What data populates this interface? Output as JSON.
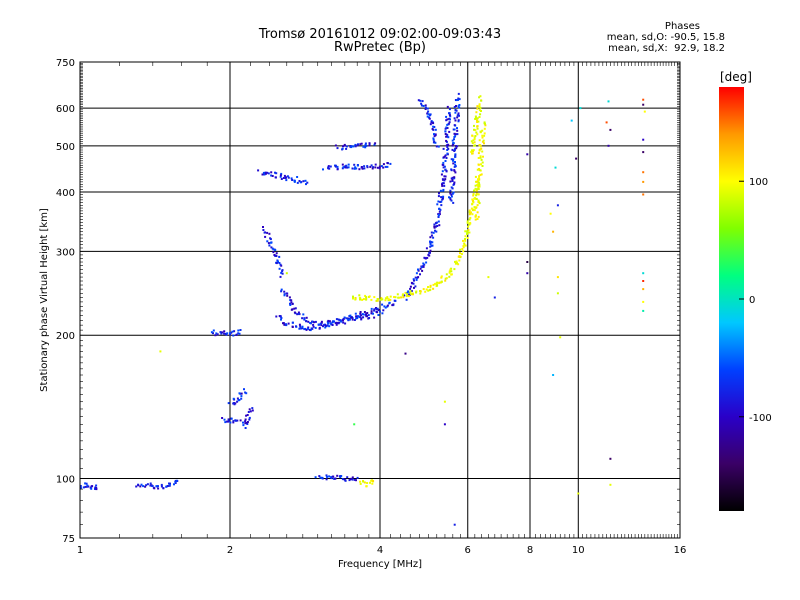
{
  "header": {
    "title_line1": "Tromsø 20161012 09:02:00-09:03:43",
    "title_line2": "RwPretec (Bp)",
    "phases_title": "Phases",
    "phases_o": "mean, sd,O: -90.5, 15.8",
    "phases_x": "mean, sd,X:  92.9, 18.2"
  },
  "colorbar": {
    "unit_label": "[deg]",
    "tick_labels": [
      "100",
      "0",
      "-100"
    ],
    "tick_values": [
      100,
      0,
      -100
    ],
    "range": [
      -180,
      180
    ],
    "colors": [
      "#000000",
      "#3a0066",
      "#2a00c8",
      "#0040ff",
      "#00c8ff",
      "#00ff80",
      "#80ff00",
      "#ffff00",
      "#ff9900",
      "#ff0000"
    ]
  },
  "chart_data": {
    "type": "scatter",
    "title": "Tromsø 20161012 09:02:00-09:03:43",
    "subtitle": "RwPretec (Bp)",
    "xlabel": "Frequency [MHz]",
    "ylabel": "Stationary phase Virtual Height [km]",
    "xscale": "log",
    "yscale": "log",
    "xlim": [
      1,
      16
    ],
    "ylim": [
      75,
      750
    ],
    "xticks": [
      1,
      2,
      4,
      6,
      8,
      10,
      16
    ],
    "xtick_labels": [
      "1",
      "2",
      "4",
      "6",
      "8",
      "10",
      "16"
    ],
    "yticks": [
      75,
      100,
      200,
      300,
      400,
      500,
      600,
      750
    ],
    "ytick_labels": [
      "75",
      "100",
      "200",
      "300",
      "400",
      "500",
      "600",
      "750"
    ],
    "grid": true,
    "color_variable": "phase [deg]",
    "series": [
      {
        "mode": "O",
        "phase": -110,
        "segments": [
          {
            "x": [
              1.0,
              1.03,
              1.06,
              1.08
            ],
            "y": [
              96,
              97,
              95,
              96
            ]
          },
          {
            "x": [
              1.3,
              1.38,
              1.45,
              1.52,
              1.58
            ],
            "y": [
              96,
              97,
              96,
              97,
              98
            ]
          },
          {
            "x": [
              1.84,
              1.9,
              1.97,
              2.04,
              2.1
            ],
            "y": [
              203,
              202,
              201,
              202,
              203
            ]
          },
          {
            "x": [
              1.93,
              2.0,
              2.05,
              2.1
            ],
            "y": [
              133,
              132,
              133,
              132
            ]
          },
          {
            "x": [
              2.0,
              2.05,
              2.1,
              2.14
            ],
            "y": [
              143,
              145,
              149,
              153
            ]
          },
          {
            "x": [
              2.15,
              2.17,
              2.2
            ],
            "y": [
              128,
              132,
              140
            ]
          },
          {
            "x": [
              3.0,
              3.2,
              3.45,
              3.6
            ],
            "y": [
              100,
              101,
              100,
              99
            ]
          },
          {
            "x": [
              2.3,
              2.4,
              2.55,
              2.7,
              2.85
            ],
            "y": [
              440,
              437,
              430,
              425,
              418
            ]
          },
          {
            "x": [
              3.1,
              3.4,
              3.7,
              4.2
            ],
            "y": [
              448,
              452,
              450,
              455
            ]
          },
          {
            "x": [
              3.3,
              3.6,
              3.9
            ],
            "y": [
              495,
              500,
              505
            ]
          },
          {
            "x": [
              2.35,
              2.4,
              2.45,
              2.5,
              2.55
            ],
            "y": [
              335,
              315,
              300,
              285,
              268
            ]
          },
          {
            "x": [
              2.55,
              2.7,
              2.9,
              3.2,
              3.5,
              3.9,
              4.3
            ],
            "y": [
              250,
              225,
              213,
              212,
              218,
              225,
              235
            ]
          },
          {
            "x": [
              2.5,
              2.6,
              2.75,
              2.9,
              3.1,
              3.4,
              3.7,
              4.0
            ],
            "y": [
              220,
              212,
              208,
              207,
              210,
              214,
              218,
              222
            ]
          },
          {
            "x": [
              4.5,
              4.8,
              5.0,
              5.2,
              5.3,
              5.4,
              5.45,
              5.5
            ],
            "y": [
              240,
              270,
              300,
              340,
              390,
              450,
              520,
              600
            ]
          },
          {
            "x": [
              4.8,
              4.95,
              5.1,
              5.2
            ],
            "y": [
              620,
              600,
              560,
              500
            ]
          },
          {
            "x": [
              5.55,
              5.6,
              5.65,
              5.7,
              5.72
            ],
            "y": [
              380,
              430,
              500,
              580,
              640
            ]
          }
        ]
      },
      {
        "mode": "X",
        "phase": 95,
        "segments": [
          {
            "x": [
              3.5,
              3.7,
              3.95,
              4.2,
              4.6,
              5.0,
              5.3
            ],
            "y": [
              241,
              240,
              238,
              240,
              245,
              250,
              258
            ]
          },
          {
            "x": [
              5.2,
              5.5,
              5.8,
              6.0,
              6.15,
              6.3
            ],
            "y": [
              255,
              270,
              295,
              330,
              380,
              430
            ]
          },
          {
            "x": [
              6.1,
              6.2,
              6.3,
              6.35
            ],
            "y": [
              480,
              530,
              580,
              630
            ]
          },
          {
            "x": [
              6.25,
              6.4,
              6.45
            ],
            "y": [
              350,
              500,
              560
            ]
          },
          {
            "x": [
              3.65,
              3.8,
              3.9
            ],
            "y": [
              98,
              97,
              99
            ]
          }
        ]
      },
      {
        "mode": "scattered",
        "points": [
          {
            "x": 1.45,
            "y": 185,
            "phase": 90
          },
          {
            "x": 2.6,
            "y": 270,
            "phase": 80
          },
          {
            "x": 3.55,
            "y": 130,
            "phase": 20
          },
          {
            "x": 4.5,
            "y": 183,
            "phase": -140
          },
          {
            "x": 5.4,
            "y": 130,
            "phase": -120
          },
          {
            "x": 5.4,
            "y": 145,
            "phase": 90
          },
          {
            "x": 5.65,
            "y": 80,
            "phase": -110
          },
          {
            "x": 6.6,
            "y": 265,
            "phase": 90
          },
          {
            "x": 6.8,
            "y": 240,
            "phase": -110
          },
          {
            "x": 7.9,
            "y": 480,
            "phase": -130
          },
          {
            "x": 7.9,
            "y": 285,
            "phase": -160
          },
          {
            "x": 7.9,
            "y": 270,
            "phase": -130
          },
          {
            "x": 8.8,
            "y": 360,
            "phase": 100
          },
          {
            "x": 8.9,
            "y": 330,
            "phase": 130
          },
          {
            "x": 9.0,
            "y": 450,
            "phase": -20
          },
          {
            "x": 9.1,
            "y": 375,
            "phase": -110
          },
          {
            "x": 9.1,
            "y": 265,
            "phase": 110
          },
          {
            "x": 9.1,
            "y": 245,
            "phase": 80
          },
          {
            "x": 8.9,
            "y": 165,
            "phase": -40
          },
          {
            "x": 9.2,
            "y": 198,
            "phase": 90
          },
          {
            "x": 9.7,
            "y": 565,
            "phase": -30
          },
          {
            "x": 9.9,
            "y": 470,
            "phase": -150
          },
          {
            "x": 10.1,
            "y": 600,
            "phase": -20
          },
          {
            "x": 10.0,
            "y": 93,
            "phase": 90
          },
          {
            "x": 11.5,
            "y": 620,
            "phase": -20
          },
          {
            "x": 11.4,
            "y": 560,
            "phase": 160
          },
          {
            "x": 11.6,
            "y": 540,
            "phase": -150
          },
          {
            "x": 11.5,
            "y": 500,
            "phase": -130
          },
          {
            "x": 11.6,
            "y": 110,
            "phase": -150
          },
          {
            "x": 11.6,
            "y": 97,
            "phase": 90
          },
          {
            "x": 13.5,
            "y": 625,
            "phase": 160
          },
          {
            "x": 13.5,
            "y": 610,
            "phase": -150
          },
          {
            "x": 13.6,
            "y": 590,
            "phase": 100
          },
          {
            "x": 13.5,
            "y": 515,
            "phase": -120
          },
          {
            "x": 13.5,
            "y": 485,
            "phase": -150
          },
          {
            "x": 13.5,
            "y": 440,
            "phase": 150
          },
          {
            "x": 13.5,
            "y": 420,
            "phase": 140
          },
          {
            "x": 13.5,
            "y": 395,
            "phase": 150
          },
          {
            "x": 13.5,
            "y": 270,
            "phase": -20
          },
          {
            "x": 13.5,
            "y": 260,
            "phase": 170
          },
          {
            "x": 13.5,
            "y": 250,
            "phase": 130
          },
          {
            "x": 13.5,
            "y": 235,
            "phase": 100
          },
          {
            "x": 13.5,
            "y": 225,
            "phase": -10
          }
        ]
      }
    ]
  }
}
